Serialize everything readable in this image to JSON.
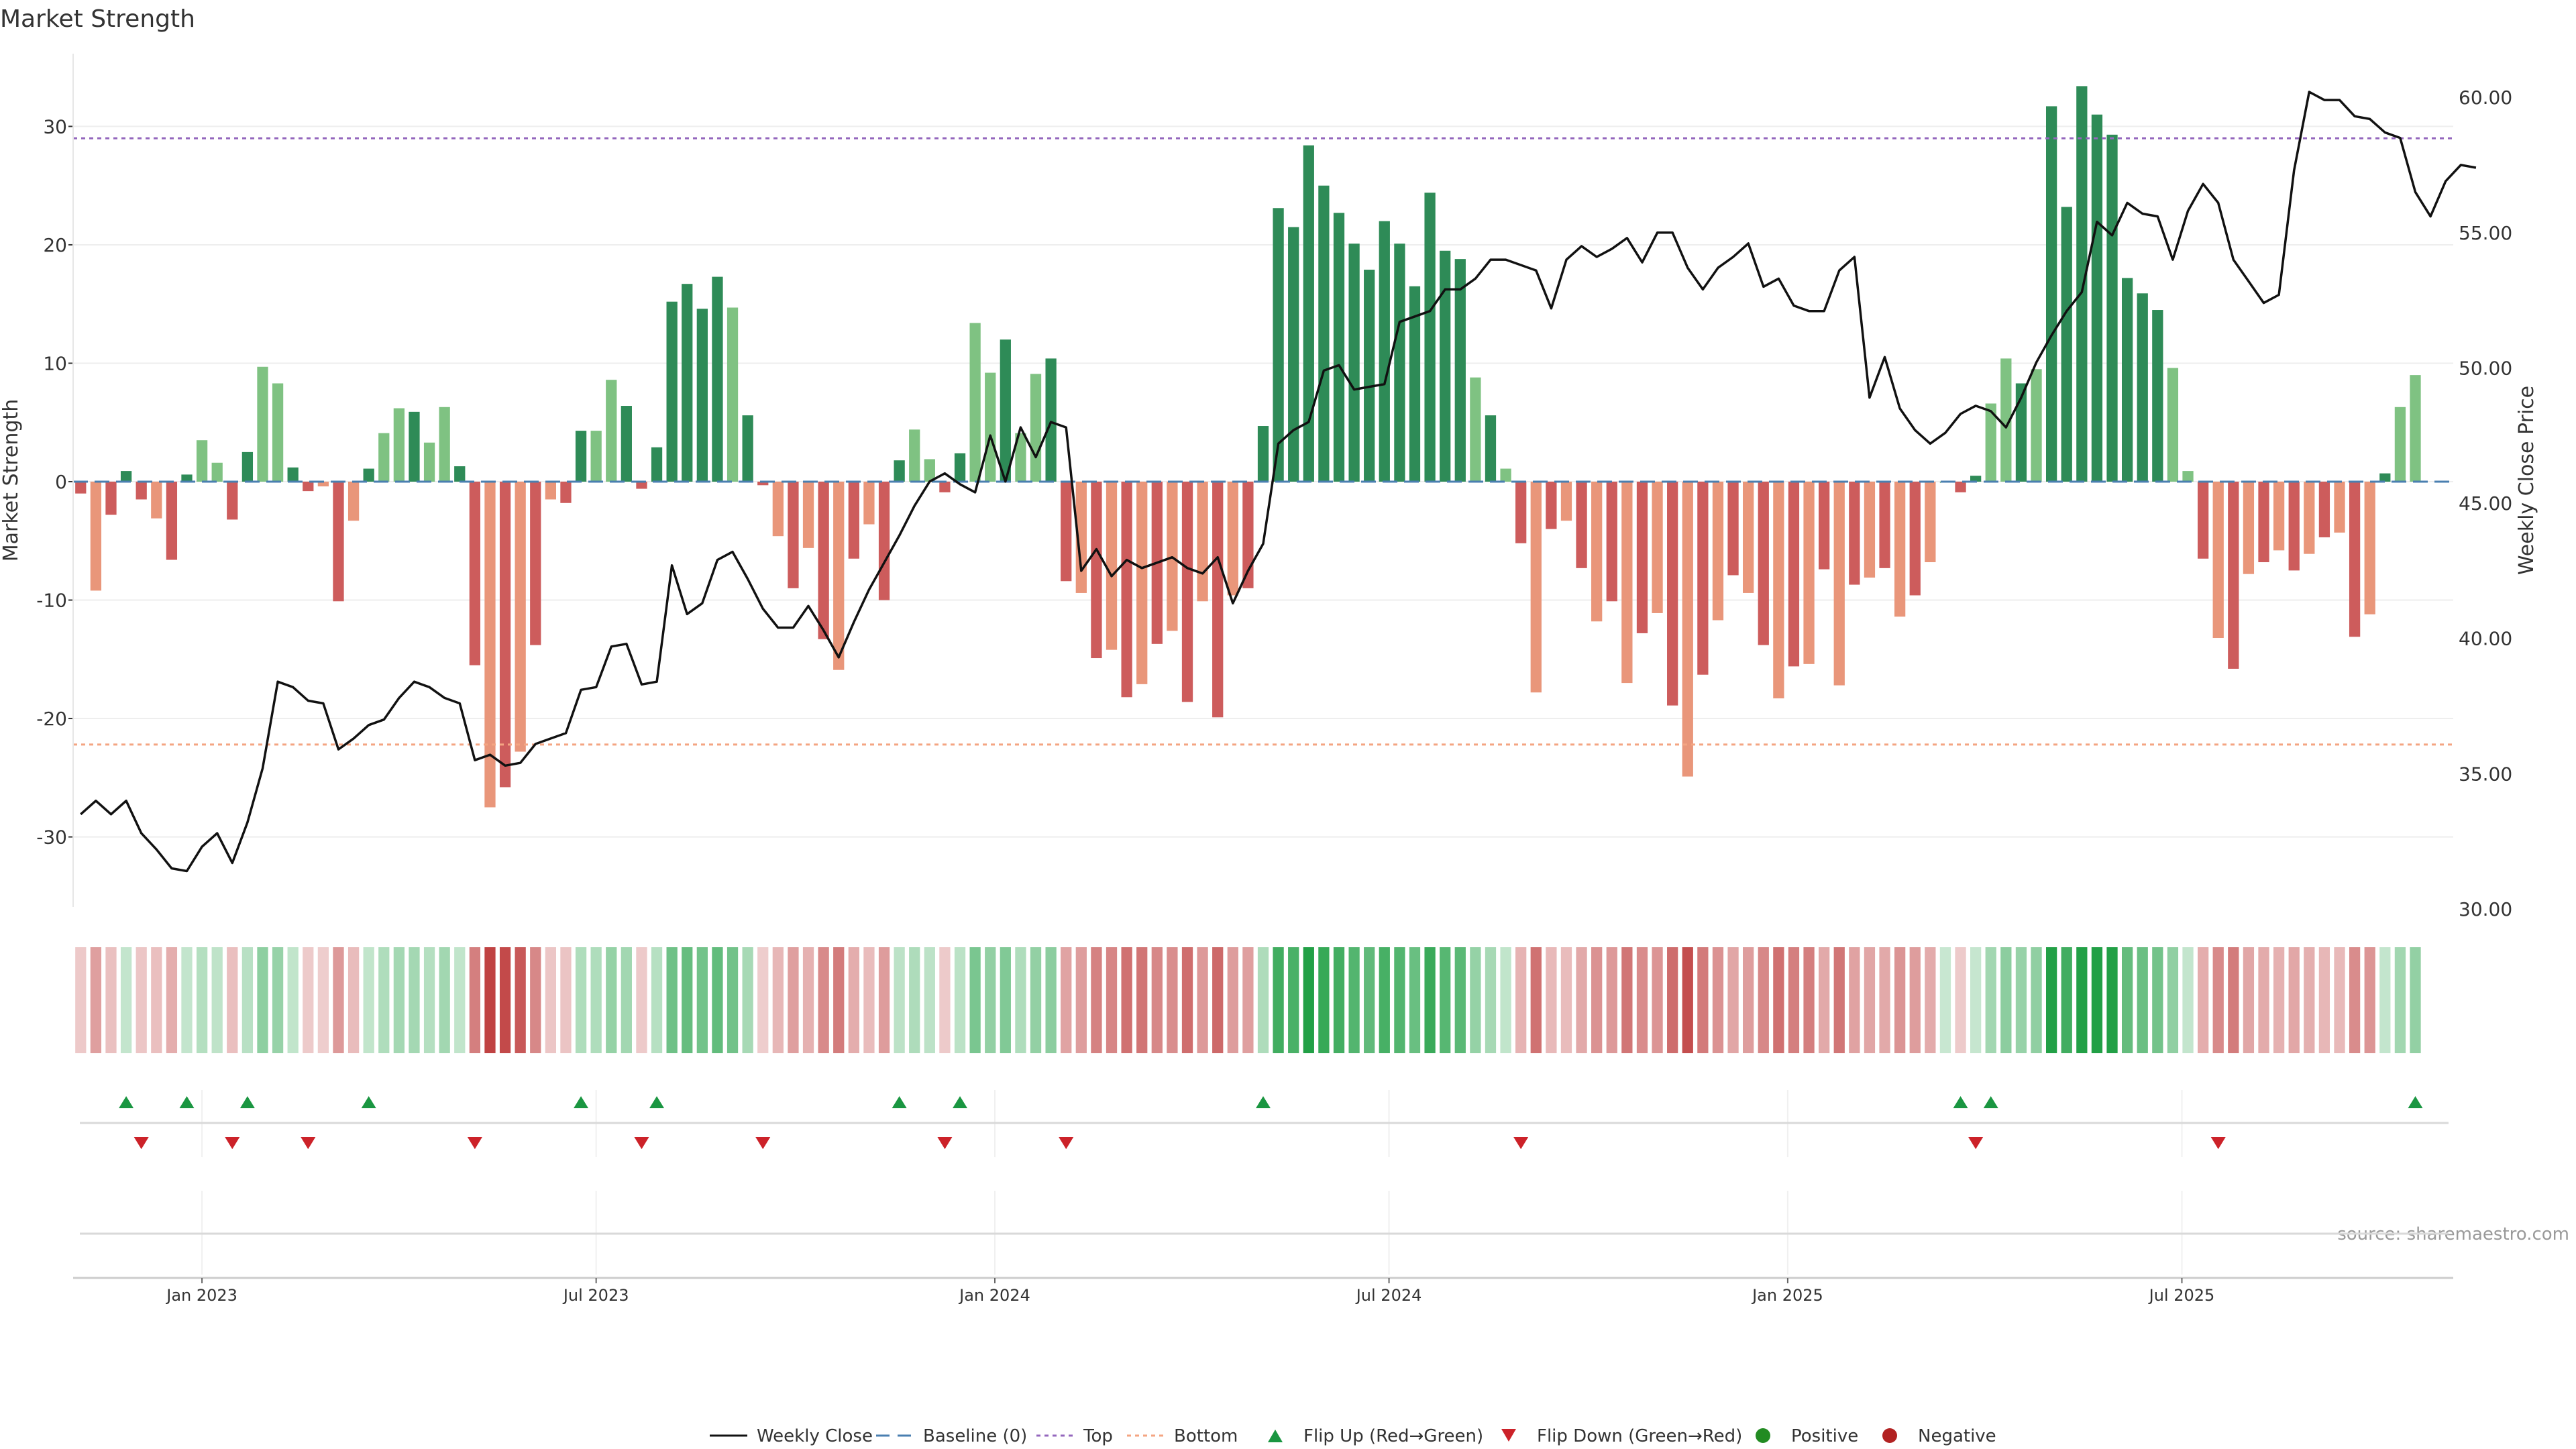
{
  "chart_data": {
    "type": "bar",
    "title": "Market Strength",
    "ylabel": "Market Strength",
    "y2label": "Weekly Close Price",
    "ylim": [
      -36,
      36
    ],
    "y2lim": [
      30,
      61
    ],
    "yticks": [
      -30,
      -20,
      -10,
      0,
      10,
      20,
      30
    ],
    "y2ticks": [
      30,
      35,
      40,
      45,
      50,
      55,
      60
    ],
    "y2tick_labels": [
      "30.00",
      "35.00",
      "40.00",
      "45.00",
      "50.00",
      "55.00",
      "60.00"
    ],
    "top_line": 29,
    "bottom_line": -22.2,
    "x_labels": [
      {
        "label": "Jan 2023",
        "week": 8.5
      },
      {
        "label": "Jul 2023",
        "week": 34.5
      },
      {
        "label": "Jan 2024",
        "week": 60.8
      },
      {
        "label": "Jul 2024",
        "week": 86.8
      },
      {
        "label": "Jan 2025",
        "week": 113.1
      },
      {
        "label": "Jul 2025",
        "week": 139.1
      }
    ],
    "weeks": 157,
    "strength": [
      -1,
      -9.2,
      -2.8,
      0.9,
      -1.5,
      -3.1,
      -6.6,
      0.6,
      3.5,
      1.6,
      -3.2,
      2.5,
      9.7,
      8.3,
      1.2,
      -0.8,
      -0.4,
      -10.1,
      -3.3,
      1.1,
      4.1,
      6.2,
      5.9,
      3.3,
      6.3,
      1.3,
      -15.5,
      -27.5,
      -25.8,
      -22.8,
      -13.8,
      -1.5,
      -1.8,
      4.3,
      4.3,
      8.6,
      6.4,
      -0.6,
      2.9,
      15.2,
      16.7,
      14.6,
      17.3,
      14.7,
      5.6,
      -0.3,
      -4.6,
      -9,
      -5.6,
      -13.3,
      -15.9,
      -6.5,
      -3.6,
      -10,
      1.8,
      4.4,
      1.9,
      -0.9,
      2.4,
      13.4,
      9.2,
      12,
      4.1,
      9.1,
      10.4,
      -8.4,
      -9.4,
      -14.9,
      -14.2,
      -18.2,
      -17.1,
      -13.7,
      -12.6,
      -18.6,
      -10.1,
      -19.9,
      -9.6,
      -9,
      4.7,
      23.1,
      21.5,
      28.4,
      25,
      22.7,
      20.1,
      17.9,
      22,
      20.1,
      16.5,
      24.4,
      19.5,
      18.8,
      8.8,
      5.6,
      1.1,
      -5.2,
      -17.8,
      -4,
      -3.3,
      -7.3,
      -11.8,
      -10.1,
      -17,
      -12.8,
      -11.1,
      -18.9,
      -24.9,
      -16.3,
      -11.7,
      -7.9,
      -9.4,
      -13.8,
      -18.3,
      -15.6,
      -15.4,
      -7.4,
      -17.2,
      -8.7,
      -8.1,
      -7.3,
      -11.4,
      -9.6,
      -6.8,
      0,
      -0.9,
      0.5,
      6.6,
      10.4,
      8.3,
      9.5,
      31.7,
      23.2,
      33.4,
      31,
      29.3,
      17.2,
      15.9,
      14.5,
      9.6,
      0.9,
      -6.5,
      -13.2,
      -15.8,
      -7.8,
      -6.8,
      -5.8,
      -7.5,
      -6.1,
      -4.7,
      -4.3,
      -13.1,
      -11.2,
      0.7,
      6.3,
      9
    ],
    "close": [
      33.5,
      34,
      33.5,
      34,
      32.8,
      32.2,
      31.5,
      31.4,
      32.3,
      32.8,
      31.7,
      33.2,
      35.2,
      38.4,
      38.2,
      37.7,
      37.6,
      35.9,
      36.3,
      36.8,
      37,
      37.8,
      38.4,
      38.2,
      37.8,
      37.6,
      35.5,
      35.7,
      35.3,
      35.4,
      36.1,
      36.3,
      36.5,
      38.1,
      38.2,
      39.7,
      39.8,
      38.3,
      38.4,
      42.7,
      40.9,
      41.3,
      42.9,
      43.2,
      42.2,
      41.1,
      40.4,
      40.4,
      41.2,
      40.3,
      39.3,
      40.6,
      41.8,
      42.8,
      43.8,
      44.9,
      45.8,
      46.1,
      45.7,
      45.4,
      47.5,
      45.8,
      47.8,
      46.7,
      48,
      47.8,
      42.5,
      43.3,
      42.3,
      42.9,
      42.6,
      42.8,
      43,
      42.6,
      42.4,
      43,
      41.3,
      42.5,
      43.5,
      47.2,
      47.7,
      48,
      49.9,
      50.1,
      49.2,
      49.3,
      49.4,
      51.7,
      51.9,
      52.1,
      52.9,
      52.9,
      53.3,
      54,
      54,
      53.8,
      53.6,
      52.2,
      54,
      54.5,
      54.1,
      54.4,
      54.8,
      53.9,
      55,
      55,
      53.7,
      52.9,
      53.7,
      54.1,
      54.6,
      53,
      53.3,
      52.3,
      52.1,
      52.1,
      53.6,
      54.1,
      48.9,
      50.4,
      48.5,
      47.7,
      47.2,
      47.6,
      48.3,
      48.6,
      48.4,
      47.8,
      48.9,
      50.2,
      51.2,
      52.1,
      52.8,
      55.4,
      54.9,
      56.1,
      55.7,
      55.6,
      54,
      55.8,
      56.8,
      56.1,
      54,
      53.2,
      52.4,
      52.7,
      57.3,
      60.2,
      59.9,
      59.9,
      59.3,
      59.2,
      58.7,
      58.5,
      56.5,
      55.6,
      56.9,
      57.5,
      57.4
    ],
    "flip_up": [
      3,
      7,
      11,
      19,
      33,
      38,
      54,
      58,
      78,
      124,
      126,
      154
    ],
    "flip_down": [
      4,
      10,
      15,
      26,
      37,
      45,
      57,
      65,
      95,
      125,
      141
    ],
    "legend": [
      {
        "label": "Weekly Close"
      },
      {
        "label": "Baseline (0)"
      },
      {
        "label": "Top"
      },
      {
        "label": "Bottom"
      },
      {
        "label": "Flip Up (Red→Green)"
      },
      {
        "label": "Flip Down (Green→Red)"
      },
      {
        "label": "Positive"
      },
      {
        "label": "Negative"
      }
    ],
    "source": "source: sharemaestro.com"
  },
  "colors": {
    "pos_dark": "#2e8b57",
    "pos_light": "#7fc282",
    "neg_dark": "#cd5c5c",
    "neg_light": "#e9967a",
    "line": "#111111",
    "baseline": "#4a7fb0",
    "top": "#9467bd",
    "bottom": "#f4a582",
    "flip_up": "#1a9641",
    "flip_down": "#cc2229",
    "positive": "#228b22",
    "negative": "#b22222"
  }
}
